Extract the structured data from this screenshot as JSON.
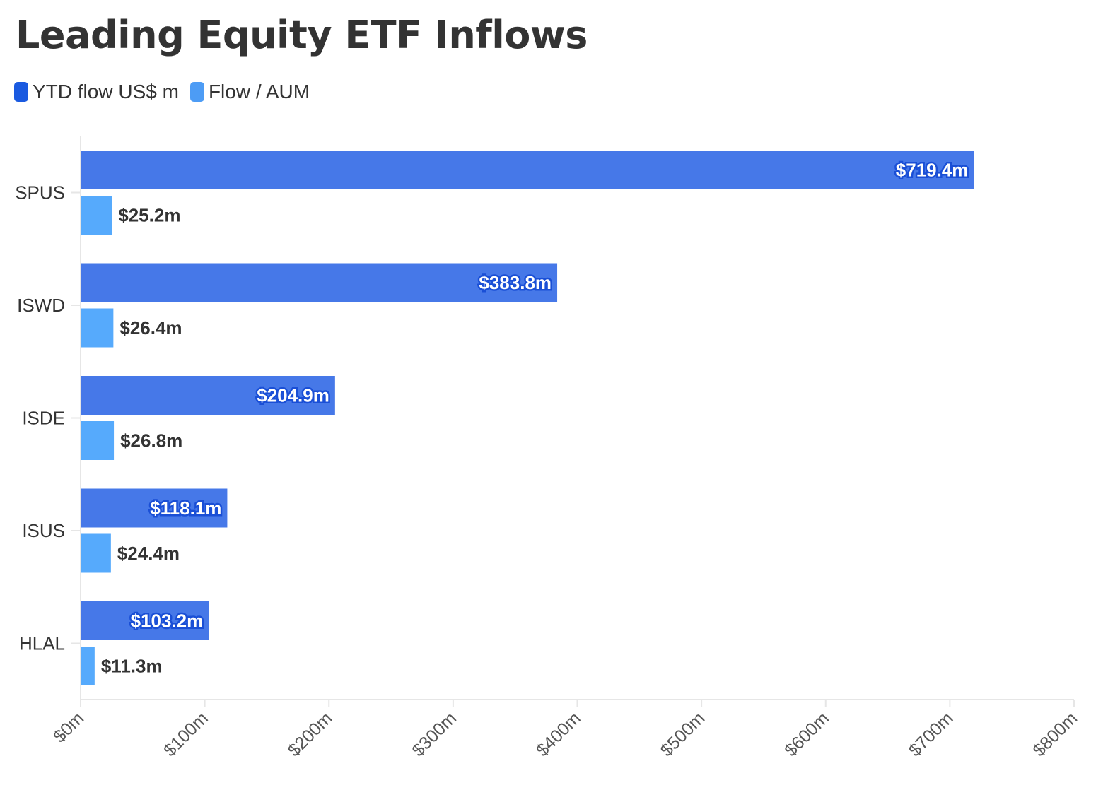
{
  "chart_data": {
    "type": "bar",
    "orientation": "horizontal",
    "title": "Leading Equity ETF Inflows",
    "categories": [
      "SPUS",
      "ISWD",
      "ISDE",
      "ISUS",
      "HLAL"
    ],
    "series": [
      {
        "name": "YTD flow US$ m",
        "color": "#4678e8",
        "values": [
          719.4,
          383.8,
          204.9,
          118.1,
          103.2
        ],
        "labels": [
          "$719.4m",
          "$383.8m",
          "$204.9m",
          "$118.1m",
          "$103.2m"
        ]
      },
      {
        "name": "Flow / AUM",
        "color": "#56aafc",
        "values": [
          25.2,
          26.4,
          26.8,
          24.4,
          11.3
        ],
        "labels": [
          "$25.2m",
          "$26.4m",
          "$26.8m",
          "$24.4m",
          "$11.3m"
        ]
      }
    ],
    "xlim": [
      0,
      800
    ],
    "xticks": [
      "$0m",
      "$100m",
      "$200m",
      "$300m",
      "$400m",
      "$500m",
      "$600m",
      "$700m",
      "$800m"
    ],
    "legend_position": "top-left",
    "grid": false
  },
  "legend_swatch_colors": [
    "#1a5ae0",
    "#4d9cf5"
  ]
}
